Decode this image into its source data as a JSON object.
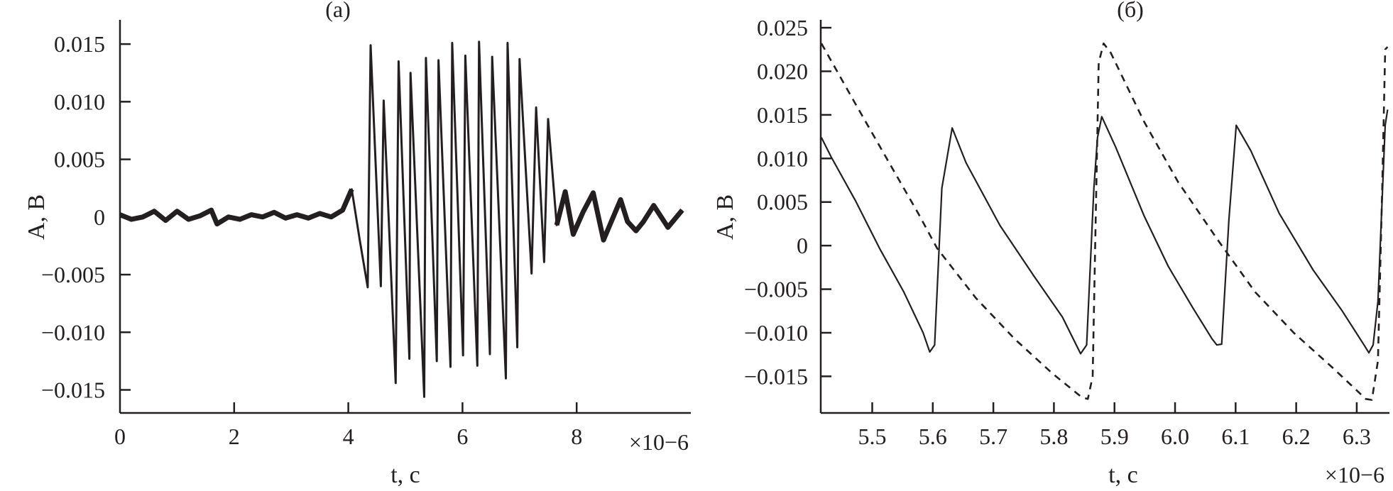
{
  "chart_data": [
    {
      "type": "line",
      "title": "(a)",
      "xlabel": "t, с",
      "ylabel": "A, В",
      "x_multiplier": "×10−6",
      "xlim": [
        0,
        10
      ],
      "ylim": [
        -0.017,
        0.0171
      ],
      "xticks": [
        0,
        2,
        4,
        6,
        8
      ],
      "xtick_labels": [
        "0",
        "2",
        "4",
        "6",
        "8"
      ],
      "yticks": [
        0.015,
        0.01,
        0.005,
        0,
        -0.005,
        -0.01,
        -0.015
      ],
      "ytick_labels": [
        "0.015",
        "0.010",
        "0.005",
        "0",
        "−0.005",
        "−0.010",
        "−0.015"
      ],
      "grid": false,
      "line_color": "#231f20",
      "series": [
        {
          "style": "solid",
          "x": [
            0,
            0.2,
            0.4,
            0.6,
            0.8,
            1.0,
            1.2,
            1.4,
            1.6,
            1.7,
            1.9,
            2.1,
            2.3,
            2.5,
            2.7,
            2.9,
            3.1,
            3.3,
            3.5,
            3.7,
            3.9,
            4.06,
            4.2,
            4.34,
            4.39,
            4.57,
            4.62,
            4.83,
            4.88,
            5.07,
            5.09,
            5.33,
            5.36,
            5.55,
            5.58,
            5.79,
            5.82,
            6.01,
            6.05,
            6.26,
            6.29,
            6.48,
            6.52,
            6.76,
            6.79,
            6.96,
            7.0,
            7.21,
            7.29,
            7.43,
            7.5,
            7.65,
            7.8,
            7.94,
            8.11,
            8.29,
            8.47,
            8.77,
            8.89,
            9.04,
            9.17,
            9.35,
            9.6,
            9.85
          ],
          "y": [
            0.0002,
            -0.0002,
            0,
            0.0005,
            -0.0003,
            0.0005,
            -0.0002,
            0.0001,
            0.0006,
            -0.0006,
            0,
            -0.0002,
            0.0002,
            0,
            0.0004,
            -0.0001,
            0.0002,
            -0.0001,
            0.0003,
            0,
            0.0006,
            0.0024,
            -0.002,
            -0.0061,
            0.0149,
            -0.006,
            0.0101,
            -0.0144,
            0.0135,
            -0.0123,
            0.0125,
            -0.0156,
            0.0138,
            -0.0125,
            0.0136,
            -0.013,
            0.0151,
            -0.012,
            0.014,
            -0.0129,
            0.0152,
            -0.0119,
            0.0139,
            -0.014,
            0.0151,
            -0.0113,
            0.0137,
            -0.0049,
            0.0095,
            -0.0039,
            0.0085,
            -0.0007,
            0.0022,
            -0.0015,
            0.0004,
            0.0021,
            -0.002,
            0.0015,
            -0.0004,
            -0.0012,
            -0.0004,
            0.001,
            -0.0009,
            0.0006
          ]
        }
      ]
    },
    {
      "type": "line",
      "title": "(б)",
      "xlabel": "t, с",
      "ylabel": "A, В",
      "x_multiplier": "×10−6",
      "xlim": [
        5.415,
        6.354
      ],
      "ylim": [
        -0.0192,
        0.0259
      ],
      "xticks": [
        5.5,
        5.6,
        5.7,
        5.8,
        5.9,
        6.0,
        6.1,
        6.2,
        6.3
      ],
      "xtick_labels": [
        "5.5",
        "5.6",
        "5.7",
        "5.8",
        "5.9",
        "6.0",
        "6.1",
        "6.2",
        "6.3"
      ],
      "yticks": [
        0.025,
        0.02,
        0.015,
        0.01,
        0.005,
        0,
        -0.005,
        -0.01,
        -0.015
      ],
      "ytick_labels": [
        "0.025",
        "0.020",
        "0.015",
        "0.010",
        "0.005",
        "0",
        "−0.005",
        "−0.010",
        "−0.015"
      ],
      "grid": false,
      "line_color": "#231f20",
      "series": [
        {
          "style": "solid",
          "x": [
            5.416,
            5.432,
            5.472,
            5.512,
            5.552,
            5.584,
            5.595,
            5.603,
            5.615,
            5.632,
            5.655,
            5.711,
            5.767,
            5.814,
            5.844,
            5.854,
            5.866,
            5.872,
            5.879,
            5.902,
            5.949,
            5.989,
            6.029,
            6.061,
            6.069,
            6.077,
            6.089,
            6.101,
            6.125,
            6.172,
            6.228,
            6.276,
            6.312,
            6.32,
            6.327,
            6.335,
            6.347,
            6.351
          ],
          "y": [
            0.0124,
            0.0102,
            0.0052,
            -0.0003,
            -0.0053,
            -0.01,
            -0.0122,
            -0.0114,
            0.0066,
            0.0135,
            0.0095,
            0.0023,
            -0.0035,
            -0.0082,
            -0.0124,
            -0.0114,
            0.0066,
            0.0124,
            0.0148,
            0.0113,
            0.0034,
            -0.0024,
            -0.0071,
            -0.0107,
            -0.0114,
            -0.0113,
            0.003,
            0.0138,
            0.0109,
            0.0037,
            -0.0028,
            -0.0075,
            -0.0114,
            -0.0123,
            -0.0114,
            -0.0064,
            0.0138,
            0.0156
          ]
        },
        {
          "style": "dashed",
          "x": [
            5.416,
            5.472,
            5.528,
            5.576,
            5.607,
            5.671,
            5.735,
            5.798,
            5.846,
            5.856,
            5.864,
            5.87,
            5.874,
            5.882,
            5.894,
            5.949,
            6.005,
            6.069,
            6.132,
            6.196,
            6.26,
            6.315,
            6.325,
            6.335,
            6.342,
            6.347,
            6.351
          ],
          "y": [
            0.0232,
            0.0163,
            0.0095,
            0.0037,
            -0.0003,
            -0.006,
            -0.0107,
            -0.0147,
            -0.0174,
            -0.0176,
            -0.015,
            0.0066,
            0.021,
            0.0232,
            0.0221,
            0.0142,
            0.0073,
            0.0008,
            -0.0053,
            -0.01,
            -0.014,
            -0.0176,
            -0.0177,
            -0.0132,
            0.0066,
            0.0225,
            0.0228
          ]
        }
      ]
    }
  ]
}
